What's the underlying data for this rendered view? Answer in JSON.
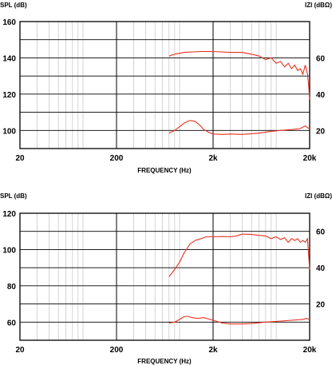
{
  "chart_data": [
    {
      "type": "line",
      "x_scale": "log",
      "xlim": [
        20,
        20000
      ],
      "xlabel": "FREQUENCY (Hz)",
      "x_ticks": [
        {
          "value": 20,
          "label": "20"
        },
        {
          "value": 200,
          "label": "200"
        },
        {
          "value": 2000,
          "label": "2k"
        },
        {
          "value": 20000,
          "label": "20k"
        }
      ],
      "ylabel_left": "SPL (dB)",
      "ylim_left": [
        90,
        160
      ],
      "y_ticks_left": [
        {
          "value": 160,
          "label": "160"
        },
        {
          "value": 140,
          "label": "140"
        },
        {
          "value": 120,
          "label": "120"
        },
        {
          "value": 100,
          "label": "100"
        }
      ],
      "ylabel_right": "IZI (dBΩ)",
      "y_ticks_right": [
        {
          "value": 140,
          "label": "60"
        },
        {
          "value": 120,
          "label": "40"
        },
        {
          "value": 100,
          "label": "20"
        }
      ],
      "grid": true,
      "line_color": "#e8311f",
      "series": [
        {
          "points": [
            [
              700,
              141
            ],
            [
              800,
              142
            ],
            [
              1000,
              143
            ],
            [
              1500,
              143.5
            ],
            [
              2000,
              143.5
            ],
            [
              3000,
              143
            ],
            [
              4000,
              143
            ],
            [
              5000,
              142
            ],
            [
              6000,
              141
            ],
            [
              7000,
              139
            ],
            [
              8000,
              140
            ],
            [
              9000,
              137
            ],
            [
              10000,
              138
            ],
            [
              11000,
              135
            ],
            [
              12000,
              137
            ],
            [
              13000,
              134
            ],
            [
              14000,
              136
            ],
            [
              15000,
              133
            ],
            [
              16000,
              134
            ],
            [
              17000,
              131
            ],
            [
              18000,
              136
            ],
            [
              19000,
              131
            ],
            [
              19500,
              125
            ],
            [
              20000,
              117
            ]
          ]
        },
        {
          "points": [
            [
              700,
              98.5
            ],
            [
              800,
              100
            ],
            [
              900,
              102
            ],
            [
              1000,
              104
            ],
            [
              1150,
              105.5
            ],
            [
              1300,
              105
            ],
            [
              1450,
              103
            ],
            [
              1600,
              100.5
            ],
            [
              1800,
              99
            ],
            [
              2000,
              98
            ],
            [
              2500,
              97.8
            ],
            [
              3000,
              98
            ],
            [
              4000,
              97.8
            ],
            [
              6000,
              98.5
            ],
            [
              8000,
              99.5
            ],
            [
              10000,
              100
            ],
            [
              13000,
              100.5
            ],
            [
              16000,
              101
            ],
            [
              18000,
              102.5
            ],
            [
              19000,
              101.5
            ],
            [
              20000,
              101
            ]
          ]
        }
      ]
    },
    {
      "type": "line",
      "x_scale": "log",
      "xlim": [
        20,
        20000
      ],
      "xlabel": "FREQUENCY (Hz)",
      "x_ticks": [
        {
          "value": 20,
          "label": "20"
        },
        {
          "value": 200,
          "label": "200"
        },
        {
          "value": 2000,
          "label": "2k"
        },
        {
          "value": 20000,
          "label": "20k"
        }
      ],
      "ylabel_left": "SPL (dB)",
      "ylim_left": [
        50,
        120
      ],
      "y_ticks_left": [
        {
          "value": 120,
          "label": "120"
        },
        {
          "value": 100,
          "label": "100"
        },
        {
          "value": 80,
          "label": "80"
        },
        {
          "value": 60,
          "label": "60"
        }
      ],
      "ylabel_right": "IZI (dBΩ)",
      "y_ticks_right": [
        {
          "value": 110,
          "label": "60"
        },
        {
          "value": 90,
          "label": "40"
        },
        {
          "value": 70,
          "label": "20"
        }
      ],
      "grid": true,
      "line_color": "#e8311f",
      "series": [
        {
          "points": [
            [
              700,
              85
            ],
            [
              800,
              89
            ],
            [
              900,
              93
            ],
            [
              1000,
              98
            ],
            [
              1150,
              103
            ],
            [
              1300,
              105
            ],
            [
              1500,
              106
            ],
            [
              1700,
              107
            ],
            [
              2000,
              107
            ],
            [
              2500,
              107.2
            ],
            [
              3000,
              107
            ],
            [
              3500,
              107.5
            ],
            [
              4000,
              108.5
            ],
            [
              5000,
              108.3
            ],
            [
              6000,
              107.8
            ],
            [
              7000,
              107.5
            ],
            [
              8000,
              106
            ],
            [
              9000,
              107
            ],
            [
              10000,
              105.5
            ],
            [
              11000,
              106.5
            ],
            [
              12000,
              104
            ],
            [
              13000,
              106
            ],
            [
              14000,
              105
            ],
            [
              15000,
              106
            ],
            [
              16000,
              104
            ],
            [
              17000,
              105
            ],
            [
              18000,
              104
            ],
            [
              19000,
              106
            ],
            [
              19500,
              97
            ],
            [
              20000,
              89
            ]
          ]
        },
        {
          "points": [
            [
              700,
              59.5
            ],
            [
              800,
              60
            ],
            [
              900,
              61.5
            ],
            [
              1000,
              63
            ],
            [
              1100,
              63.2
            ],
            [
              1200,
              62.5
            ],
            [
              1400,
              62
            ],
            [
              1600,
              62.5
            ],
            [
              2000,
              61
            ],
            [
              2500,
              59.5
            ],
            [
              3000,
              59
            ],
            [
              4000,
              59
            ],
            [
              5000,
              59.2
            ],
            [
              7000,
              60
            ],
            [
              10000,
              60.5
            ],
            [
              13000,
              61
            ],
            [
              17000,
              61.5
            ],
            [
              18500,
              62
            ],
            [
              20000,
              61.5
            ]
          ]
        }
      ]
    }
  ]
}
